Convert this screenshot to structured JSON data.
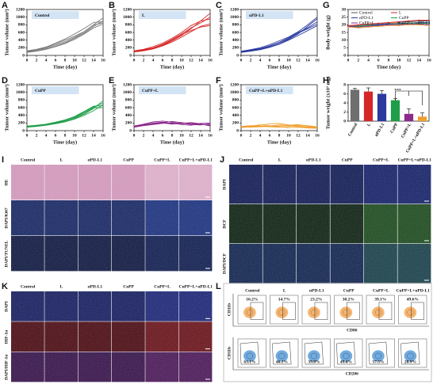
{
  "chart_data": [
    {
      "type": "line",
      "panel_label": "A",
      "title": "Control",
      "y_label": "Tumor volume (mm³)",
      "x_label": "Time (day)",
      "color": "#7a7a7a",
      "x": [
        0,
        2,
        4,
        6,
        8,
        10,
        12,
        14,
        16
      ],
      "xlim": [
        0,
        16
      ],
      "xticks": [
        0,
        2,
        4,
        6,
        8,
        10,
        12,
        14,
        16
      ],
      "ylim": [
        0,
        1200
      ],
      "yticks": [
        0,
        200,
        400,
        600,
        800,
        1000,
        1200
      ],
      "series": [
        {
          "values": [
            90,
            120,
            170,
            240,
            330,
            450,
            580,
            760,
            900
          ]
        },
        {
          "values": [
            110,
            150,
            210,
            300,
            400,
            500,
            620,
            800,
            980
          ]
        },
        {
          "values": [
            100,
            140,
            190,
            270,
            360,
            470,
            610,
            790,
            850
          ]
        },
        {
          "values": [
            120,
            160,
            220,
            320,
            430,
            560,
            700,
            860,
            880
          ]
        },
        {
          "values": [
            80,
            110,
            160,
            230,
            310,
            420,
            560,
            720,
            820
          ]
        }
      ]
    },
    {
      "type": "line",
      "panel_label": "B",
      "title": "L",
      "y_label": "Tumor volume (mm³)",
      "x_label": "Time (day)",
      "color": "#d62728",
      "x": [
        0,
        2,
        4,
        6,
        8,
        10,
        12,
        14,
        16
      ],
      "xlim": [
        0,
        16
      ],
      "xticks": [
        0,
        2,
        4,
        6,
        8,
        10,
        12,
        14,
        16
      ],
      "ylim": [
        0,
        1200
      ],
      "yticks": [
        0,
        200,
        400,
        600,
        800,
        1000,
        1200
      ],
      "series": [
        {
          "values": [
            100,
            130,
            190,
            260,
            380,
            520,
            700,
            900,
            1100
          ]
        },
        {
          "values": [
            110,
            150,
            200,
            290,
            420,
            560,
            720,
            850,
            1000
          ]
        },
        {
          "values": [
            90,
            120,
            170,
            250,
            350,
            480,
            620,
            760,
            820
          ]
        },
        {
          "values": [
            120,
            160,
            230,
            320,
            450,
            600,
            780,
            900,
            950
          ]
        },
        {
          "values": [
            100,
            140,
            180,
            270,
            400,
            540,
            650,
            740,
            780
          ]
        }
      ]
    },
    {
      "type": "line",
      "panel_label": "C",
      "title": "αPD-L1",
      "y_label": "Tumor volume (mm³)",
      "x_label": "Time (day)",
      "color": "#2b3a9f",
      "x": [
        0,
        2,
        4,
        6,
        8,
        10,
        12,
        14,
        16
      ],
      "xlim": [
        0,
        16
      ],
      "xticks": [
        0,
        2,
        4,
        6,
        8,
        10,
        12,
        14,
        16
      ],
      "ylim": [
        0,
        1200
      ],
      "yticks": [
        0,
        200,
        400,
        600,
        800,
        1000,
        1200
      ],
      "series": [
        {
          "values": [
            90,
            120,
            160,
            220,
            300,
            420,
            560,
            760,
            960
          ]
        },
        {
          "values": [
            100,
            140,
            180,
            250,
            340,
            460,
            600,
            720,
            880
          ]
        },
        {
          "values": [
            110,
            150,
            200,
            280,
            380,
            480,
            620,
            800,
            1000
          ]
        },
        {
          "values": [
            80,
            110,
            150,
            210,
            290,
            400,
            520,
            650,
            780
          ]
        },
        {
          "values": [
            100,
            130,
            170,
            240,
            330,
            440,
            580,
            700,
            820
          ]
        }
      ]
    },
    {
      "type": "line",
      "panel_label": "D",
      "title": "CuPP",
      "y_label": "Tumor volume (mm³)",
      "x_label": "Time (day)",
      "color": "#1f9e4a",
      "x": [
        0,
        2,
        4,
        6,
        8,
        10,
        12,
        14,
        16
      ],
      "xlim": [
        0,
        16
      ],
      "xticks": [
        0,
        2,
        4,
        6,
        8,
        10,
        12,
        14,
        16
      ],
      "ylim": [
        0,
        1200
      ],
      "yticks": [
        0,
        200,
        400,
        600,
        800,
        1000,
        1200
      ],
      "series": [
        {
          "values": [
            100,
            120,
            150,
            190,
            240,
            320,
            430,
            580,
            780
          ]
        },
        {
          "values": [
            110,
            130,
            160,
            200,
            260,
            350,
            480,
            620,
            720
          ]
        },
        {
          "values": [
            90,
            110,
            140,
            180,
            230,
            300,
            400,
            520,
            680
          ]
        },
        {
          "values": [
            120,
            140,
            170,
            220,
            280,
            370,
            500,
            640,
            650
          ]
        },
        {
          "values": [
            100,
            120,
            160,
            210,
            270,
            340,
            450,
            600,
            600
          ]
        }
      ]
    },
    {
      "type": "line",
      "panel_label": "E",
      "title": "CuPP+L",
      "y_label": "Tumor volume (mm³)",
      "x_label": "Time (day)",
      "color": "#8b2a8b",
      "x": [
        0,
        2,
        4,
        6,
        8,
        10,
        12,
        14,
        16
      ],
      "xlim": [
        0,
        16
      ],
      "xticks": [
        0,
        2,
        4,
        6,
        8,
        10,
        12,
        14,
        16
      ],
      "ylim": [
        0,
        1200
      ],
      "yticks": [
        0,
        200,
        400,
        600,
        800,
        1000,
        1200
      ],
      "series": [
        {
          "values": [
            100,
            150,
            200,
            220,
            180,
            200,
            160,
            150,
            180
          ]
        },
        {
          "values": [
            120,
            170,
            230,
            250,
            220,
            180,
            200,
            170,
            130
          ]
        },
        {
          "values": [
            90,
            130,
            160,
            190,
            200,
            160,
            140,
            190,
            200
          ]
        },
        {
          "values": [
            110,
            160,
            190,
            210,
            240,
            210,
            180,
            160,
            150
          ]
        },
        {
          "values": [
            100,
            140,
            170,
            200,
            170,
            190,
            210,
            180,
            120
          ]
        }
      ]
    },
    {
      "type": "line",
      "panel_label": "F",
      "title": "CuPP+L+αPD-L1",
      "y_label": "Tumor volume (mm³)",
      "x_label": "Time (day)",
      "color": "#f0a030",
      "x": [
        0,
        2,
        4,
        6,
        8,
        10,
        12,
        14,
        16
      ],
      "xlim": [
        0,
        16
      ],
      "xticks": [
        0,
        2,
        4,
        6,
        8,
        10,
        12,
        14,
        16
      ],
      "ylim": [
        0,
        1200
      ],
      "yticks": [
        0,
        200,
        400,
        600,
        800,
        1000,
        1200
      ],
      "series": [
        {
          "values": [
            100,
            120,
            150,
            130,
            100,
            80,
            90,
            70,
            60
          ]
        },
        {
          "values": [
            90,
            110,
            140,
            180,
            190,
            150,
            120,
            100,
            80
          ]
        },
        {
          "values": [
            110,
            130,
            120,
            100,
            90,
            110,
            140,
            130,
            100
          ]
        },
        {
          "values": [
            80,
            100,
            110,
            120,
            150,
            130,
            100,
            90,
            70
          ]
        },
        {
          "values": [
            100,
            90,
            100,
            110,
            120,
            140,
            160,
            120,
            90
          ]
        }
      ]
    },
    {
      "type": "line",
      "panel_label": "G",
      "y_label": "Body weight (g)",
      "x_label": "Time (day)",
      "x": [
        0,
        2,
        4,
        6,
        8,
        10,
        12,
        14,
        16
      ],
      "xlim": [
        0,
        16
      ],
      "xticks": [
        0,
        2,
        4,
        6,
        8,
        10,
        12,
        14,
        16
      ],
      "ylim": [
        0,
        30
      ],
      "yticks": [
        0,
        5,
        10,
        15,
        20,
        25,
        30
      ],
      "series": [
        {
          "name": "Control",
          "color": "#555555",
          "values": [
            19,
            19.5,
            20,
            20.5,
            21,
            21.5,
            22,
            22.5,
            22.5
          ]
        },
        {
          "name": "L",
          "color": "#d62728",
          "values": [
            19.5,
            20,
            20.5,
            21,
            21.5,
            22,
            22.5,
            23,
            23
          ]
        },
        {
          "name": "αPD-L1",
          "color": "#2b3a9f",
          "values": [
            19,
            19,
            19.5,
            20,
            20.5,
            21,
            21,
            21.5,
            21.5
          ]
        },
        {
          "name": "CuPP",
          "color": "#1f9e4a",
          "values": [
            18.5,
            19,
            19.5,
            19.5,
            20,
            20.5,
            21,
            21,
            21
          ]
        },
        {
          "name": "CuPP+L",
          "color": "#8b2a8b",
          "values": [
            19,
            18.5,
            19,
            19.5,
            20,
            20,
            20.5,
            20.5,
            20
          ]
        },
        {
          "name": "CuPP+L+αPD-L1",
          "color": "#f0a030",
          "values": [
            18.5,
            18,
            18.5,
            19,
            19.5,
            19.5,
            20,
            20,
            19.5
          ]
        }
      ]
    },
    {
      "type": "bar",
      "panel_label": "H",
      "y_label": "Tumor weight (x10³ mg)",
      "categories": [
        "Control",
        "L",
        "αPD-L1",
        "CuPP",
        "CuPP+L",
        "CuPP+L+αPD-L1"
      ],
      "values": [
        6.9,
        6.5,
        6.0,
        4.6,
        1.6,
        1.0
      ],
      "errors": [
        0.3,
        0.8,
        0.7,
        0.4,
        1.1,
        0.8
      ],
      "colors": [
        "#6e6e6e",
        "#d62728",
        "#2b3a9f",
        "#1f9e4a",
        "#8b2a8b",
        "#f0a030"
      ],
      "ylim": [
        0,
        8
      ],
      "yticks": [
        0,
        2,
        4,
        6,
        8
      ],
      "annotation": "***"
    }
  ],
  "image_panels": [
    {
      "panel_label": "I",
      "columns": [
        "Control",
        "L",
        "αPD-L1",
        "CuPP",
        "CuPP+L",
        "CuPP+L+αPD-L1"
      ],
      "rows": [
        "HE",
        "DAPI/Ki67",
        "DAPI/TUNEL"
      ]
    },
    {
      "panel_label": "J",
      "columns": [
        "Control",
        "L",
        "αPD-L1",
        "CuPP",
        "CuPP+L",
        "CuPP+L+αPD-L1"
      ],
      "rows": [
        "DAPI",
        "DCF",
        "DAPI/DCF"
      ]
    },
    {
      "panel_label": "K",
      "columns": [
        "Control",
        "L",
        "αPD-L1",
        "CuPP",
        "CuPP+L",
        "CuPP+L+αPD-L1"
      ],
      "rows": [
        "DAPI",
        "HIF-1α",
        "DAPI/HIF-1α"
      ]
    }
  ],
  "flow_panel": {
    "panel_label": "L",
    "columns": [
      "Control",
      "L",
      "αPD-L1",
      "CuPP",
      "CuPP+L",
      "CuPP+L+αPD-L1"
    ],
    "rows": [
      {
        "y_axis": "CD11b",
        "x_axis": "CD86",
        "percents": [
          "16.2%",
          "14.7%",
          "23.2%",
          "30.2%",
          "39.1%",
          "49.6%"
        ]
      },
      {
        "y_axis": "CD11b",
        "x_axis": "CD206",
        "percents": [
          "63.1%",
          "46.1%",
          "39.8%",
          "49.4%",
          "37.5%",
          "28.9%"
        ]
      }
    ]
  }
}
